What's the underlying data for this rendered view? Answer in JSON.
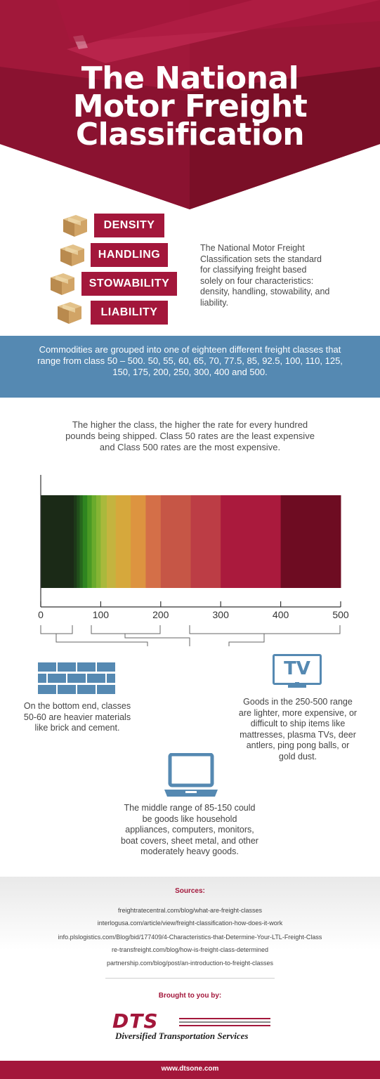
{
  "header": {
    "title_lines": [
      "The National",
      "Motor Freight",
      "Classification"
    ],
    "colors": {
      "dark": "#7d1024",
      "mid": "#9c1435",
      "light": "#b51d44"
    }
  },
  "characteristics": [
    {
      "label": "DENSITY",
      "icon": "cardboard-box-icon"
    },
    {
      "label": "HANDLING",
      "icon": "cardboard-box-icon"
    },
    {
      "label": "STOWABILITY",
      "icon": "cardboard-box-icon"
    },
    {
      "label": "LIABILITY",
      "icon": "cardboard-box-icon"
    }
  ],
  "intro_text": "The National Motor Freight Classification  sets the standard for classifying freight based solely on four characteristics: density, handling, stowability, and liability.",
  "blue_band_text": "Commodities are grouped into one of eighteen different freight classes that range from class 50 – 500. 50, 55, 60, 65, 70, 77.5, 85, 92.5, 100, 110, 125, 150, 175, 200, 250, 300, 400 and 500.",
  "rate_text": "The higher the class, the higher the rate for every hundred pounds being shipped. Class 50 rates are the least expensive and Class 500 rates are the most expensive.",
  "chart_data": {
    "type": "bar",
    "xlim": [
      0,
      500
    ],
    "ticks": [
      "0",
      "100",
      "200",
      "300",
      "400",
      "500"
    ],
    "tick_values": [
      0,
      100,
      200,
      300,
      400,
      500
    ],
    "classes": [
      50,
      55,
      60,
      65,
      70,
      77.5,
      85,
      92.5,
      100,
      110,
      125,
      150,
      175,
      200,
      250,
      300,
      400,
      500
    ],
    "segment_colors": [
      "#1b2a17",
      "#1d3a19",
      "#21501b",
      "#27681d",
      "#2f8520",
      "#4a9a24",
      "#6aab2c",
      "#86b434",
      "#a9b93c",
      "#c4b43f",
      "#d6a83c",
      "#dd9440",
      "#d46f48",
      "#c65646",
      "#bc3d45",
      "#aa1a3d",
      "#6e0c22"
    ],
    "grid": false
  },
  "descriptions": {
    "low": {
      "text": "On the bottom end, classes 50-60 are heavier materials like brick and cement.",
      "icon": "brick-wall-icon"
    },
    "mid": {
      "text": "The middle range of 85-150 could be goods like household appliances, computers, monitors, boat covers, sheet metal, and other moderately heavy goods.",
      "icon": "laptop-icon"
    },
    "high": {
      "text": "Goods in the 250-500 range are lighter, more expensive, or difficult to ship items like mattresses, plasma TVs, deer antlers, ping pong balls, or gold dust.",
      "icon": "tv-icon",
      "icon_text": "TV"
    }
  },
  "sources": {
    "title": "Sources:",
    "items": [
      "freightratecentral.com/blog/what-are-freight-classes",
      "interlogusa.com/article/view/freight-classification-how-does-it-work",
      "info.plslogistics.com/Blog/bid/177409/4-Characteristics-that-Determine-Your-LTL-Freight-Class",
      "re-transfreight.com/blog/how-is-freight-class-determined",
      "partnership.com/blog/post/an-introduction-to-freight-classes"
    ]
  },
  "brought_by": "Brought to you by:",
  "logo": {
    "name": "DTS",
    "tagline": "Diversified Transportation Services"
  },
  "footer": {
    "url": "www.dtsone.com"
  },
  "accent_color": "#a3173b",
  "band_color": "#5589b2"
}
